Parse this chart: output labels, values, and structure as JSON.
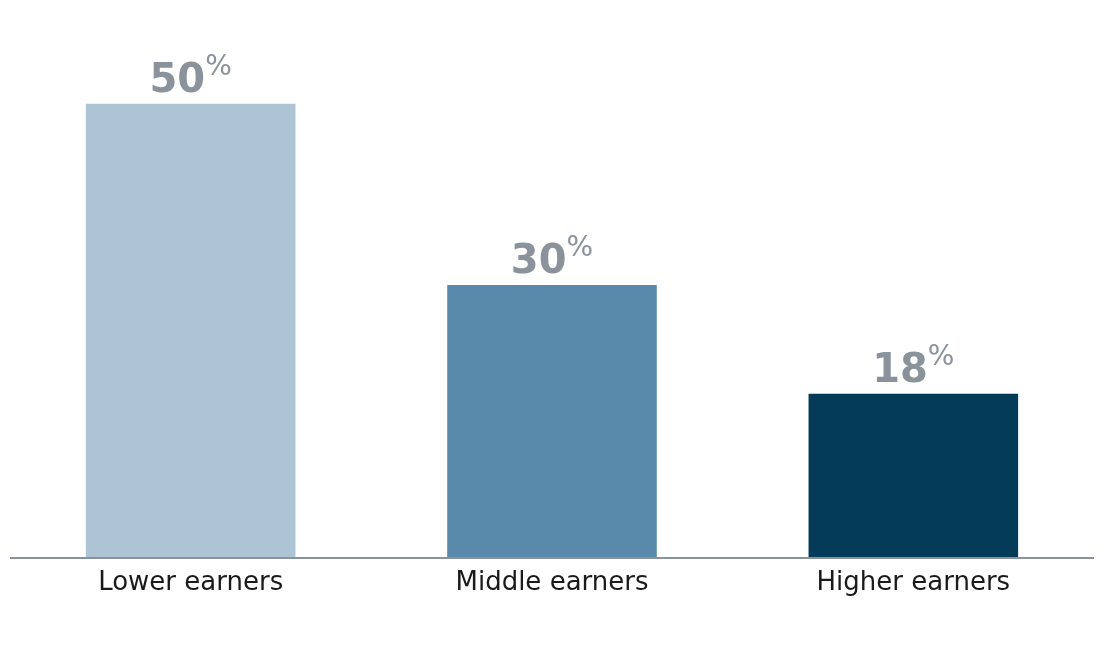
{
  "chart_data": {
    "type": "bar",
    "categories": [
      "Lower earners",
      "Middle earners",
      "Higher earners"
    ],
    "values": [
      50,
      30,
      18
    ],
    "colors": [
      "#adc4d4",
      "#5a8aab",
      "#033b59"
    ],
    "value_labels": [
      "50$^{%}$",
      "30$^{%}$",
      "18$^{%}$"
    ],
    "legend": false
  }
}
